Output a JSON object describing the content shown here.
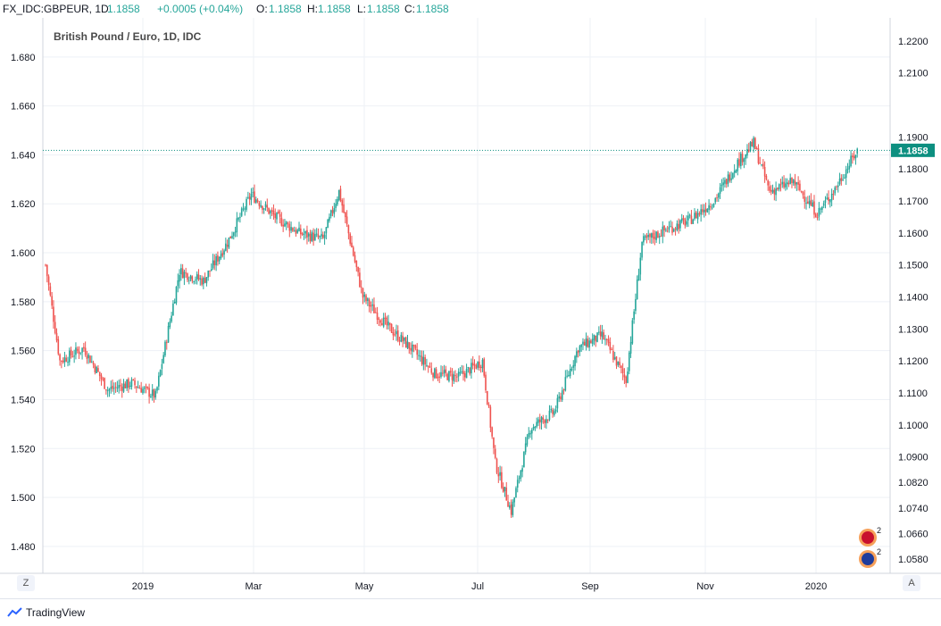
{
  "header": {
    "symbol": "FX_IDC:GBPEUR, 1D",
    "last": "1.1858",
    "change": "+0.0005 (+0.04%)",
    "o_label": "O:",
    "o_value": "1.1858",
    "h_label": "H:",
    "h_value": "1.1858",
    "l_label": "L:",
    "l_value": "1.1858",
    "c_label": "C:",
    "c_value": "1.1858"
  },
  "footer": {
    "brand": "TradingView"
  },
  "buttons": {
    "z": "Z",
    "a": "A"
  },
  "events": {
    "count1": "2",
    "count2": "2"
  },
  "colors": {
    "up": "#26a69a",
    "down": "#ef5350",
    "price_label": "#0d8f80",
    "grid": "#eef1f6",
    "marker": "#f6a05a"
  },
  "chart_data": {
    "type": "candlestick",
    "title": "British Pound / Euro, 1D, IDC",
    "x_ticks": [
      "2019",
      "Mar",
      "May",
      "Jul",
      "Sep",
      "Nov",
      "2020"
    ],
    "left_axis": {
      "ticks": [
        "1.680",
        "1.660",
        "1.640",
        "1.620",
        "1.600",
        "1.580",
        "1.560",
        "1.540",
        "1.520",
        "1.500",
        "1.480"
      ],
      "range": [
        1.469,
        1.696
      ]
    },
    "right_axis": {
      "ticks": [
        "1.2200",
        "1.2100",
        "1.1900",
        "1.1800",
        "1.1700",
        "1.1600",
        "1.1500",
        "1.1400",
        "1.1300",
        "1.1200",
        "1.1100",
        "1.1000",
        "1.0900",
        "1.0820",
        "1.0740",
        "1.0660",
        "1.0580"
      ],
      "range": [
        1.0536,
        1.2272
      ]
    },
    "current_price": "1.1858",
    "grid": true,
    "series": [
      {
        "name": "",
        "points": [
          {
            "x": 1,
            "y": 1.15
          },
          {
            "x": 10,
            "y": 1.12
          },
          {
            "x": 25,
            "y": 1.124
          },
          {
            "x": 40,
            "y": 1.111
          },
          {
            "x": 55,
            "y": 1.113
          },
          {
            "x": 70,
            "y": 1.109
          },
          {
            "x": 85,
            "y": 1.148
          },
          {
            "x": 100,
            "y": 1.145
          },
          {
            "x": 115,
            "y": 1.157
          },
          {
            "x": 130,
            "y": 1.172
          },
          {
            "x": 145,
            "y": 1.165
          },
          {
            "x": 160,
            "y": 1.16
          },
          {
            "x": 175,
            "y": 1.158
          },
          {
            "x": 185,
            "y": 1.173
          },
          {
            "x": 200,
            "y": 1.14
          },
          {
            "x": 215,
            "y": 1.131
          },
          {
            "x": 230,
            "y": 1.124
          },
          {
            "x": 245,
            "y": 1.116
          },
          {
            "x": 260,
            "y": 1.115
          },
          {
            "x": 275,
            "y": 1.12
          },
          {
            "x": 283,
            "y": 1.088
          },
          {
            "x": 293,
            "y": 1.073
          },
          {
            "x": 305,
            "y": 1.099
          },
          {
            "x": 320,
            "y": 1.104
          },
          {
            "x": 335,
            "y": 1.124
          },
          {
            "x": 350,
            "y": 1.128
          },
          {
            "x": 365,
            "y": 1.114
          },
          {
            "x": 375,
            "y": 1.157
          },
          {
            "x": 390,
            "y": 1.161
          },
          {
            "x": 405,
            "y": 1.164
          },
          {
            "x": 420,
            "y": 1.17
          },
          {
            "x": 435,
            "y": 1.182
          },
          {
            "x": 445,
            "y": 1.188
          },
          {
            "x": 455,
            "y": 1.173
          },
          {
            "x": 470,
            "y": 1.176
          },
          {
            "x": 485,
            "y": 1.166
          },
          {
            "x": 495,
            "y": 1.173
          },
          {
            "x": 510,
            "y": 1.1858
          }
        ]
      }
    ]
  }
}
